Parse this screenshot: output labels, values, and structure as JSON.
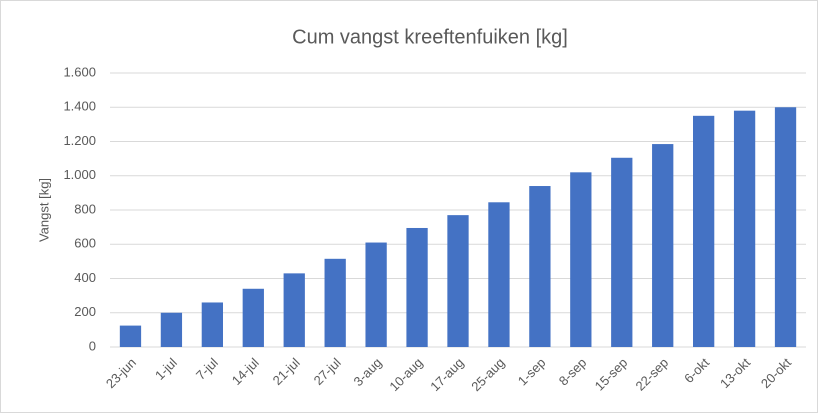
{
  "chart_data": {
    "type": "bar",
    "title": "Cum vangst kreeftenfuiken [kg]",
    "y_label": "Vangst [kg]",
    "categories": [
      "23-jun",
      "1-jul",
      "7-jul",
      "14-jul",
      "21-jul",
      "27-jul",
      "3-aug",
      "10-aug",
      "17-aug",
      "25-aug",
      "1-sep",
      "8-sep",
      "15-sep",
      "22-sep",
      "6-okt",
      "13-okt",
      "20-okt"
    ],
    "values": [
      125,
      200,
      260,
      340,
      430,
      515,
      610,
      695,
      770,
      845,
      940,
      1020,
      1105,
      1185,
      1350,
      1380,
      1400
    ],
    "color": "#4472c4",
    "ylim": [
      0,
      1600
    ],
    "yticks": [
      0,
      200,
      400,
      600,
      800,
      {
        "value": 1000,
        "label": "1.000"
      },
      {
        "value": 1200,
        "label": "1.200"
      },
      {
        "value": 1400,
        "label": "1.400"
      },
      {
        "value": 1600,
        "label": "1.600"
      }
    ],
    "grid": true
  }
}
